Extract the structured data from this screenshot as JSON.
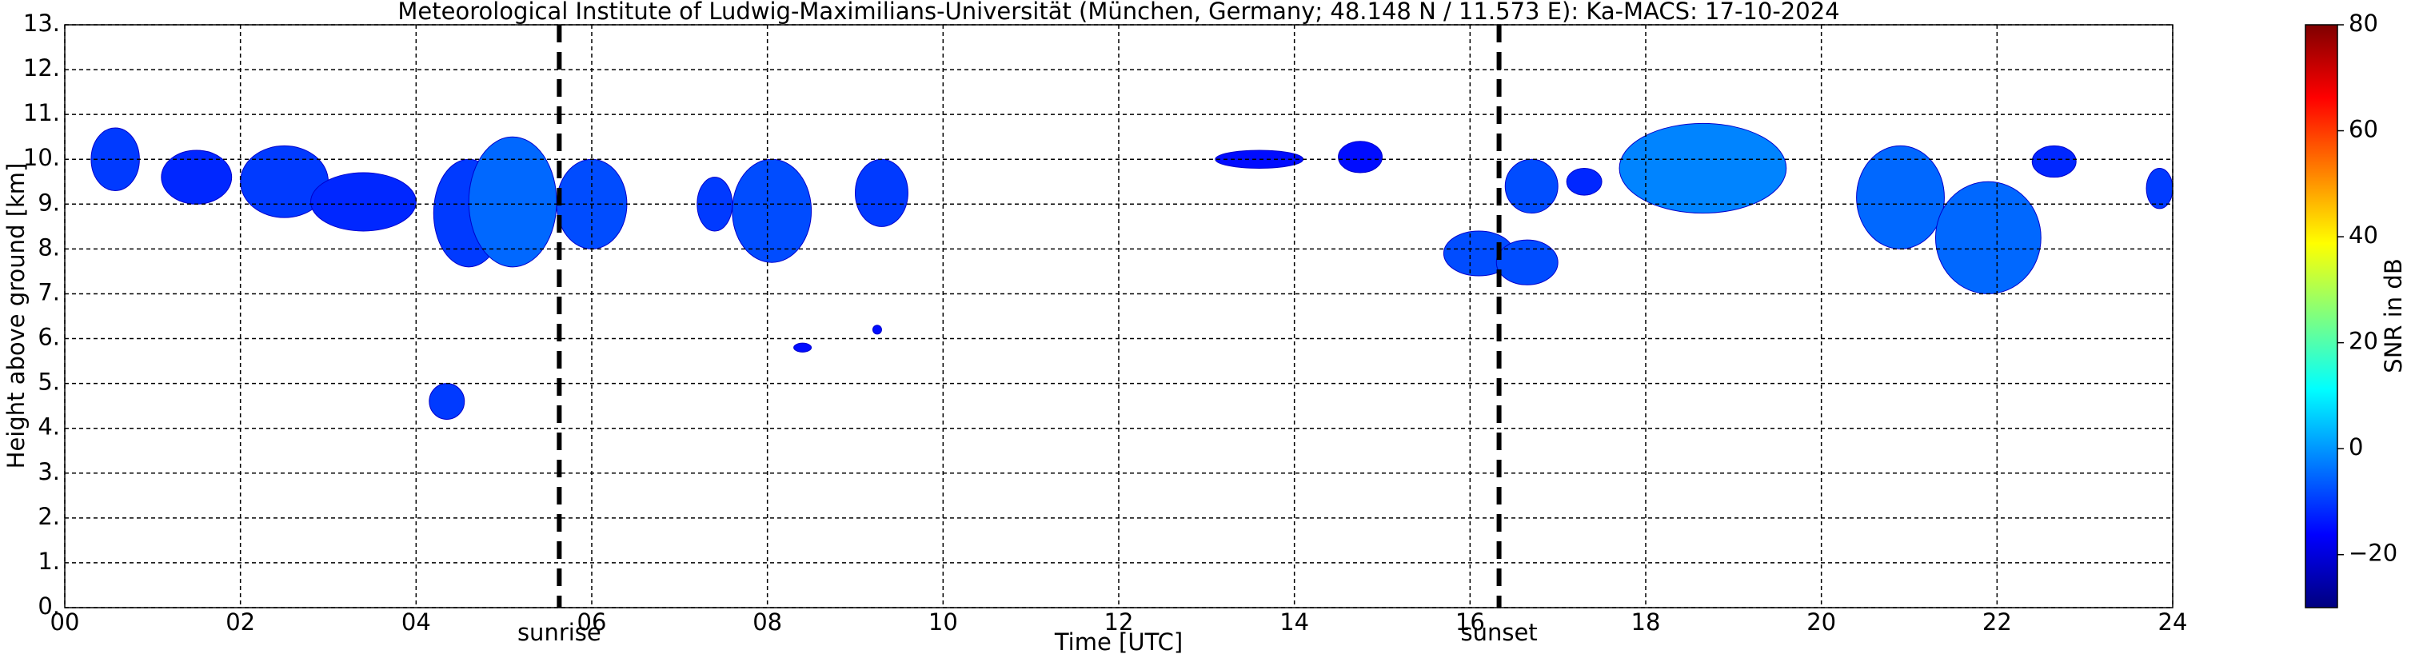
{
  "chart_data": {
    "type": "time-height",
    "title": "Meteorological Institute of Ludwig-Maximilians-Universität (München, Germany; 48.148 N / 11.573 E):    Ka-MACS: 17-10-2024",
    "x_label": "Time [UTC]",
    "y_label": "Height above ground [km]",
    "colorbar_label": "SNR in dB",
    "xlim": [
      0,
      24
    ],
    "ylim": [
      0,
      13
    ],
    "clim": [
      -30,
      80
    ],
    "colors": [
      "#00007f",
      "#0000ff",
      "#007fff",
      "#00ffff",
      "#7fff7f",
      "#ffff00",
      "#ff7f00",
      "#ff0000",
      "#7f0000"
    ],
    "grid": true,
    "xticks": [
      {
        "value": 0,
        "label": "00"
      },
      {
        "value": 2,
        "label": "02"
      },
      {
        "value": 4,
        "label": "04"
      },
      {
        "value": 6,
        "label": "06"
      },
      {
        "value": 8,
        "label": "08"
      },
      {
        "value": 10,
        "label": "10"
      },
      {
        "value": 12,
        "label": "12"
      },
      {
        "value": 14,
        "label": "14"
      },
      {
        "value": 16,
        "label": "16"
      },
      {
        "value": 18,
        "label": "18"
      },
      {
        "value": 20,
        "label": "20"
      },
      {
        "value": 22,
        "label": "22"
      },
      {
        "value": 24,
        "label": "24"
      }
    ],
    "yticks": [
      {
        "value": 0,
        "label": "0."
      },
      {
        "value": 1,
        "label": "1."
      },
      {
        "value": 2,
        "label": "2."
      },
      {
        "value": 3,
        "label": "3."
      },
      {
        "value": 4,
        "label": "4."
      },
      {
        "value": 5,
        "label": "5."
      },
      {
        "value": 6,
        "label": "6."
      },
      {
        "value": 7,
        "label": "7."
      },
      {
        "value": 8,
        "label": "8."
      },
      {
        "value": 9,
        "label": "9."
      },
      {
        "value": 10,
        "label": "10."
      },
      {
        "value": 11,
        "label": "11."
      },
      {
        "value": 12,
        "label": "12."
      },
      {
        "value": 13,
        "label": "13."
      }
    ],
    "cticks": [
      {
        "value": -20,
        "label": "−20"
      },
      0,
      20,
      40,
      60,
      80
    ],
    "events": [
      {
        "name": "sunrise",
        "time": 5.63
      },
      {
        "name": "sunset",
        "time": 16.33
      }
    ],
    "echoes": [
      {
        "t0": 0.3,
        "t1": 0.85,
        "h0": 9.3,
        "h1": 10.7,
        "snr": -10
      },
      {
        "t0": 1.1,
        "t1": 1.9,
        "h0": 9.0,
        "h1": 10.2,
        "snr": -12
      },
      {
        "t0": 2.0,
        "t1": 3.0,
        "h0": 8.7,
        "h1": 10.3,
        "snr": -10
      },
      {
        "t0": 2.8,
        "t1": 4.0,
        "h0": 8.4,
        "h1": 9.7,
        "snr": -12
      },
      {
        "t0": 4.2,
        "t1": 5.0,
        "h0": 7.6,
        "h1": 10.0,
        "snr": -10
      },
      {
        "t0": 4.6,
        "t1": 5.6,
        "h0": 7.6,
        "h1": 10.5,
        "snr": -5
      },
      {
        "t0": 5.6,
        "t1": 6.4,
        "h0": 8.0,
        "h1": 10.0,
        "snr": -8
      },
      {
        "t0": 7.2,
        "t1": 7.6,
        "h0": 8.4,
        "h1": 9.6,
        "snr": -10
      },
      {
        "t0": 7.6,
        "t1": 8.5,
        "h0": 7.7,
        "h1": 10.0,
        "snr": -8
      },
      {
        "t0": 9.0,
        "t1": 9.6,
        "h0": 8.5,
        "h1": 10.0,
        "snr": -10
      },
      {
        "t0": 13.1,
        "t1": 14.1,
        "h0": 9.8,
        "h1": 10.2,
        "snr": -15
      },
      {
        "t0": 14.5,
        "t1": 15.0,
        "h0": 9.7,
        "h1": 10.4,
        "snr": -15
      },
      {
        "t0": 15.7,
        "t1": 16.5,
        "h0": 7.4,
        "h1": 8.4,
        "snr": -8
      },
      {
        "t0": 16.3,
        "t1": 17.0,
        "h0": 7.2,
        "h1": 8.2,
        "snr": -8
      },
      {
        "t0": 16.4,
        "t1": 17.0,
        "h0": 8.8,
        "h1": 10.0,
        "snr": -8
      },
      {
        "t0": 17.1,
        "t1": 17.5,
        "h0": 9.2,
        "h1": 9.8,
        "snr": -12
      },
      {
        "t0": 17.7,
        "t1": 19.6,
        "h0": 8.8,
        "h1": 10.8,
        "snr": -2
      },
      {
        "t0": 20.4,
        "t1": 21.4,
        "h0": 8.0,
        "h1": 10.3,
        "snr": -5
      },
      {
        "t0": 21.3,
        "t1": 22.5,
        "h0": 7.0,
        "h1": 9.5,
        "snr": -5
      },
      {
        "t0": 22.4,
        "t1": 22.9,
        "h0": 9.6,
        "h1": 10.3,
        "snr": -12
      },
      {
        "t0": 23.7,
        "t1": 24.0,
        "h0": 8.9,
        "h1": 9.8,
        "snr": -10
      },
      {
        "t0": 4.15,
        "t1": 4.55,
        "h0": 4.2,
        "h1": 5.0,
        "snr": -10
      },
      {
        "t0": 8.3,
        "t1": 8.5,
        "h0": 5.7,
        "h1": 5.9,
        "snr": -15
      },
      {
        "t0": 9.2,
        "t1": 9.3,
        "h0": 6.1,
        "h1": 6.3,
        "snr": -15
      }
    ]
  }
}
